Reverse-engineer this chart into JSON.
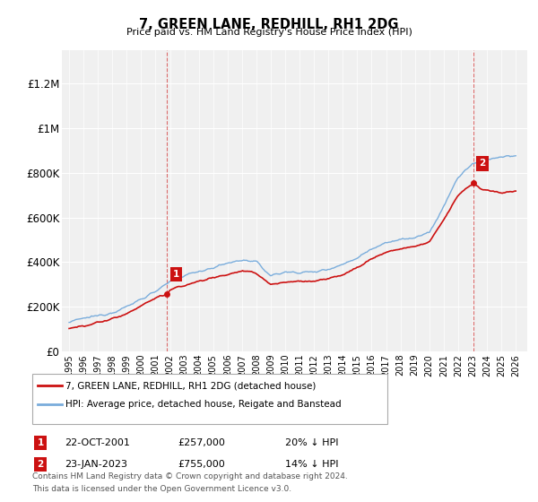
{
  "title": "7, GREEN LANE, REDHILL, RH1 2DG",
  "subtitle": "Price paid vs. HM Land Registry's House Price Index (HPI)",
  "ylabel_ticks": [
    "£0",
    "£200K",
    "£400K",
    "£600K",
    "£800K",
    "£1M",
    "£1.2M"
  ],
  "ytick_values": [
    0,
    200000,
    400000,
    600000,
    800000,
    1000000,
    1200000
  ],
  "ylim": [
    0,
    1350000
  ],
  "xlim_start": 1994.5,
  "xlim_end": 2026.8,
  "hpi_color": "#7aaddc",
  "price_color": "#cc1111",
  "background_color": "#f0f0f0",
  "grid_color": "#ffffff",
  "legend_label_price": "7, GREEN LANE, REDHILL, RH1 2DG (detached house)",
  "legend_label_hpi": "HPI: Average price, detached house, Reigate and Banstead",
  "sale1_date": 2001.81,
  "sale1_price": 257000,
  "sale1_label": "1",
  "sale2_date": 2023.07,
  "sale2_price": 755000,
  "sale2_label": "2",
  "footnote1": "Contains HM Land Registry data © Crown copyright and database right 2024.",
  "footnote2": "This data is licensed under the Open Government Licence v3.0.",
  "table_row1": [
    "1",
    "22-OCT-2001",
    "£257,000",
    "20% ↓ HPI"
  ],
  "table_row2": [
    "2",
    "23-JAN-2023",
    "£755,000",
    "14% ↓ HPI"
  ]
}
